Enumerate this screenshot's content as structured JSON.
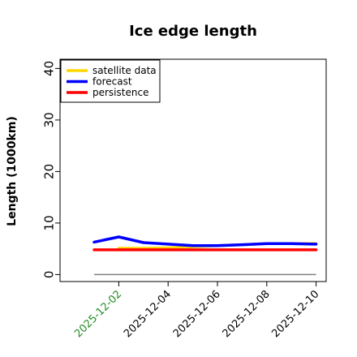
{
  "chart_data": {
    "type": "line",
    "title": "Ice edge length",
    "xlabel": "",
    "ylabel": "Length (1000km)",
    "x": [
      "2025-12-01",
      "2025-12-02",
      "2025-12-03",
      "2025-12-04",
      "2025-12-05",
      "2025-12-06",
      "2025-12-07",
      "2025-12-08",
      "2025-12-09",
      "2025-12-10"
    ],
    "x_tick_labels": [
      "2025-12-02",
      "2025-12-04",
      "2025-12-06",
      "2025-12-08",
      "2025-12-10"
    ],
    "x_tick_colors": [
      "#228B22",
      "#000000",
      "#000000",
      "#000000",
      "#000000"
    ],
    "ylim": [
      -1,
      41
    ],
    "yticks": [
      0,
      10,
      20,
      30,
      40
    ],
    "legend_position": "top-left",
    "baseline": {
      "value": 0,
      "color": "#808080"
    },
    "series": [
      {
        "name": "satellite data",
        "color": "#FFD700",
        "values": [
          null,
          5.1,
          5.1,
          5.2,
          5.4,
          5.6,
          5.8,
          6.0,
          6.0,
          6.0
        ]
      },
      {
        "name": "forecast",
        "color": "#0000FF",
        "values": [
          6.3,
          7.3,
          6.2,
          5.9,
          5.6,
          5.6,
          5.8,
          6.0,
          6.0,
          5.9
        ]
      },
      {
        "name": "persistence",
        "color": "#FF0000",
        "values": [
          4.8,
          4.8,
          4.8,
          4.8,
          4.8,
          4.8,
          4.8,
          4.8,
          4.8,
          4.8
        ]
      }
    ]
  }
}
